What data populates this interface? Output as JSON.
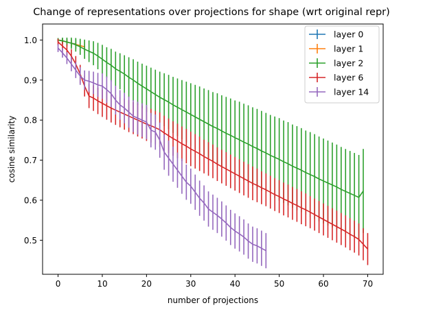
{
  "chart_data": {
    "type": "line",
    "title": "Change of representations over projections for shape (wrt original repr)",
    "xlabel": "number of projections",
    "ylabel": "cosine similarity",
    "xlim": [
      -3.5,
      73.5
    ],
    "ylim": [
      0.415,
      1.04
    ],
    "xticks": [
      0,
      10,
      20,
      30,
      40,
      50,
      60,
      70
    ],
    "yticks": [
      0.5,
      0.6,
      0.7,
      0.8,
      0.9,
      1.0
    ],
    "ytick_labels": [
      "0.5",
      "0.6",
      "0.7",
      "0.8",
      "0.9",
      "1.0"
    ],
    "grid": false,
    "legend_position": "top-right",
    "series": [
      {
        "name": "layer 0",
        "color": "#1f77b4",
        "x": [
          0,
          1,
          2,
          3,
          4
        ],
        "y": [
          1.0,
          0.998,
          0.995,
          0.992,
          0.99
        ],
        "err": [
          0.003,
          0.006,
          0.008,
          0.01,
          0.012
        ]
      },
      {
        "name": "layer 1",
        "color": "#ff7f0e",
        "x": [
          0,
          1,
          2,
          3,
          4,
          5,
          6
        ],
        "y": [
          1.0,
          0.998,
          0.995,
          0.992,
          0.989,
          0.986,
          0.983
        ],
        "err": [
          0.003,
          0.005,
          0.007,
          0.009,
          0.011,
          0.013,
          0.015
        ]
      },
      {
        "name": "layer 2",
        "color": "#2ca02c",
        "x": [
          0,
          1,
          2,
          3,
          4,
          5,
          6,
          7,
          8,
          9,
          10,
          11,
          12,
          13,
          14,
          15,
          16,
          17,
          18,
          19,
          20,
          21,
          22,
          23,
          24,
          25,
          26,
          27,
          28,
          29,
          30,
          31,
          32,
          33,
          34,
          35,
          36,
          37,
          38,
          39,
          40,
          41,
          42,
          43,
          44,
          45,
          46,
          47,
          48,
          49,
          50,
          51,
          52,
          53,
          54,
          55,
          56,
          57,
          58,
          59,
          60,
          61,
          62,
          63,
          64,
          65,
          66,
          67,
          68,
          69
        ],
        "y": [
          1.0,
          0.998,
          0.995,
          0.992,
          0.988,
          0.983,
          0.977,
          0.972,
          0.967,
          0.96,
          0.952,
          0.944,
          0.937,
          0.928,
          0.922,
          0.915,
          0.907,
          0.9,
          0.892,
          0.885,
          0.878,
          0.871,
          0.864,
          0.857,
          0.851,
          0.845,
          0.838,
          0.832,
          0.826,
          0.82,
          0.814,
          0.808,
          0.802,
          0.796,
          0.79,
          0.784,
          0.779,
          0.773,
          0.767,
          0.762,
          0.756,
          0.751,
          0.745,
          0.74,
          0.734,
          0.729,
          0.723,
          0.718,
          0.712,
          0.707,
          0.702,
          0.696,
          0.691,
          0.685,
          0.68,
          0.675,
          0.669,
          0.664,
          0.659,
          0.653,
          0.648,
          0.643,
          0.638,
          0.633,
          0.627,
          0.622,
          0.617,
          0.612,
          0.607,
          0.623
        ],
        "err": [
          0.005,
          0.008,
          0.011,
          0.014,
          0.017,
          0.02,
          0.024,
          0.027,
          0.03,
          0.033,
          0.036,
          0.038,
          0.041,
          0.043,
          0.045,
          0.047,
          0.05,
          0.052,
          0.054,
          0.056,
          0.058,
          0.06,
          0.062,
          0.064,
          0.066,
          0.068,
          0.07,
          0.072,
          0.074,
          0.076,
          0.078,
          0.08,
          0.082,
          0.083,
          0.085,
          0.086,
          0.088,
          0.089,
          0.091,
          0.092,
          0.093,
          0.095,
          0.096,
          0.097,
          0.098,
          0.099,
          0.1,
          0.1,
          0.101,
          0.102,
          0.103,
          0.103,
          0.104,
          0.104,
          0.105,
          0.105,
          0.105,
          0.106,
          0.106,
          0.106,
          0.106,
          0.106,
          0.106,
          0.106,
          0.106,
          0.106,
          0.106,
          0.106,
          0.106,
          0.105
        ]
      },
      {
        "name": "layer 6",
        "color": "#d62728",
        "x": [
          0,
          1,
          2,
          3,
          4,
          5,
          6,
          7,
          8,
          9,
          10,
          11,
          12,
          13,
          14,
          15,
          16,
          17,
          18,
          19,
          20,
          21,
          22,
          23,
          24,
          25,
          26,
          27,
          28,
          29,
          30,
          31,
          32,
          33,
          34,
          35,
          36,
          37,
          38,
          39,
          40,
          41,
          42,
          43,
          44,
          45,
          46,
          47,
          48,
          49,
          50,
          51,
          52,
          53,
          54,
          55,
          56,
          57,
          58,
          59,
          60,
          61,
          62,
          63,
          64,
          65,
          66,
          67,
          68,
          69,
          70
        ],
        "y": [
          0.995,
          0.985,
          0.975,
          0.96,
          0.94,
          0.915,
          0.885,
          0.86,
          0.855,
          0.848,
          0.842,
          0.836,
          0.83,
          0.825,
          0.82,
          0.815,
          0.81,
          0.805,
          0.8,
          0.795,
          0.79,
          0.786,
          0.781,
          0.776,
          0.768,
          0.761,
          0.754,
          0.748,
          0.741,
          0.735,
          0.728,
          0.722,
          0.716,
          0.709,
          0.703,
          0.697,
          0.69,
          0.684,
          0.678,
          0.672,
          0.666,
          0.66,
          0.654,
          0.648,
          0.642,
          0.637,
          0.631,
          0.626,
          0.62,
          0.614,
          0.609,
          0.603,
          0.598,
          0.592,
          0.587,
          0.581,
          0.576,
          0.57,
          0.564,
          0.558,
          0.552,
          0.546,
          0.54,
          0.534,
          0.528,
          0.522,
          0.515,
          0.509,
          0.502,
          0.49,
          0.478
        ],
        "err": [
          0.008,
          0.011,
          0.014,
          0.017,
          0.02,
          0.023,
          0.026,
          0.03,
          0.032,
          0.033,
          0.034,
          0.035,
          0.036,
          0.037,
          0.038,
          0.039,
          0.04,
          0.04,
          0.041,
          0.041,
          0.042,
          0.042,
          0.042,
          0.043,
          0.043,
          0.043,
          0.043,
          0.043,
          0.043,
          0.043,
          0.043,
          0.043,
          0.043,
          0.042,
          0.042,
          0.042,
          0.042,
          0.042,
          0.042,
          0.042,
          0.042,
          0.042,
          0.042,
          0.042,
          0.042,
          0.042,
          0.041,
          0.041,
          0.041,
          0.041,
          0.041,
          0.041,
          0.041,
          0.041,
          0.041,
          0.041,
          0.041,
          0.04,
          0.04,
          0.04,
          0.04,
          0.04,
          0.04,
          0.04,
          0.04,
          0.04,
          0.04,
          0.04,
          0.04,
          0.04,
          0.04
        ]
      },
      {
        "name": "layer 14",
        "color": "#9467bd",
        "x": [
          0,
          1,
          2,
          3,
          4,
          5,
          6,
          7,
          8,
          9,
          10,
          11,
          12,
          13,
          14,
          15,
          16,
          17,
          18,
          19,
          20,
          21,
          22,
          23,
          24,
          25,
          26,
          27,
          28,
          29,
          30,
          31,
          32,
          33,
          34,
          35,
          36,
          37,
          38,
          39,
          40,
          41,
          42,
          43,
          44,
          45,
          46,
          47
        ],
        "y": [
          0.98,
          0.968,
          0.955,
          0.94,
          0.925,
          0.91,
          0.9,
          0.897,
          0.893,
          0.888,
          0.885,
          0.876,
          0.866,
          0.85,
          0.838,
          0.83,
          0.82,
          0.81,
          0.805,
          0.8,
          0.795,
          0.775,
          0.77,
          0.75,
          0.72,
          0.705,
          0.69,
          0.675,
          0.66,
          0.645,
          0.635,
          0.62,
          0.605,
          0.593,
          0.578,
          0.57,
          0.562,
          0.553,
          0.543,
          0.532,
          0.523,
          0.516,
          0.508,
          0.498,
          0.49,
          0.486,
          0.48,
          0.474
        ],
        "err": [
          0.01,
          0.012,
          0.015,
          0.018,
          0.02,
          0.022,
          0.024,
          0.026,
          0.028,
          0.03,
          0.032,
          0.033,
          0.034,
          0.036,
          0.037,
          0.038,
          0.039,
          0.04,
          0.041,
          0.042,
          0.043,
          0.043,
          0.044,
          0.044,
          0.044,
          0.044,
          0.044,
          0.044,
          0.044,
          0.044,
          0.044,
          0.044,
          0.044,
          0.044,
          0.044,
          0.044,
          0.044,
          0.044,
          0.044,
          0.044,
          0.044,
          0.044,
          0.044,
          0.044,
          0.044,
          0.044,
          0.044,
          0.044
        ]
      }
    ]
  }
}
